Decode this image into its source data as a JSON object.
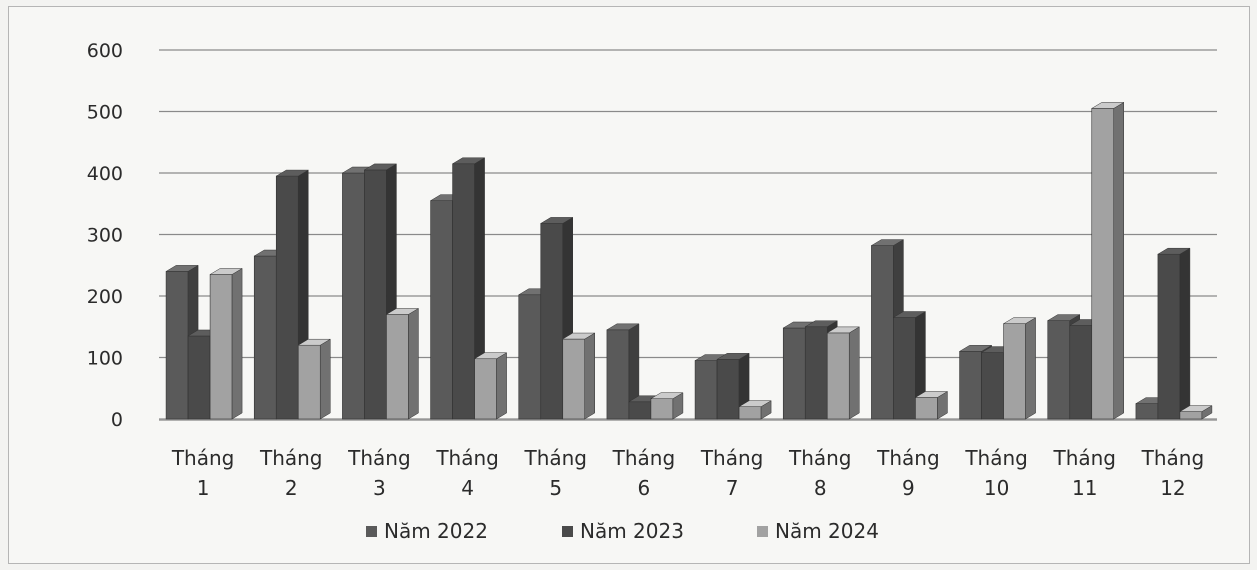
{
  "chart_data": {
    "type": "bar",
    "categories": [
      [
        "Tháng",
        "1"
      ],
      [
        "Tháng",
        "2"
      ],
      [
        "Tháng",
        "3"
      ],
      [
        "Tháng",
        "4"
      ],
      [
        "Tháng",
        "5"
      ],
      [
        "Tháng",
        "6"
      ],
      [
        "Tháng",
        "7"
      ],
      [
        "Tháng",
        "8"
      ],
      [
        "Tháng",
        "9"
      ],
      [
        "Tháng",
        "10"
      ],
      [
        "Tháng",
        "11"
      ],
      [
        "Tháng",
        "12"
      ]
    ],
    "series": [
      {
        "name": "Năm 2022",
        "color": "#5a5a5a",
        "values": [
          240,
          265,
          400,
          355,
          202,
          145,
          95,
          148,
          282,
          110,
          160,
          25
        ]
      },
      {
        "name": "Năm 2023",
        "color": "#4a4a4a",
        "values": [
          135,
          395,
          405,
          415,
          318,
          28,
          97,
          150,
          165,
          108,
          152,
          268
        ]
      },
      {
        "name": "Năm 2024",
        "color": "#a2a2a2",
        "values": [
          235,
          120,
          170,
          98,
          130,
          33,
          20,
          140,
          35,
          155,
          505,
          12
        ]
      }
    ],
    "yticks": [
      "0",
      "100",
      "200",
      "300",
      "400",
      "500",
      "600"
    ],
    "ylim": [
      0,
      600
    ],
    "grid": true,
    "legend_position": "bottom",
    "style": "3d"
  }
}
